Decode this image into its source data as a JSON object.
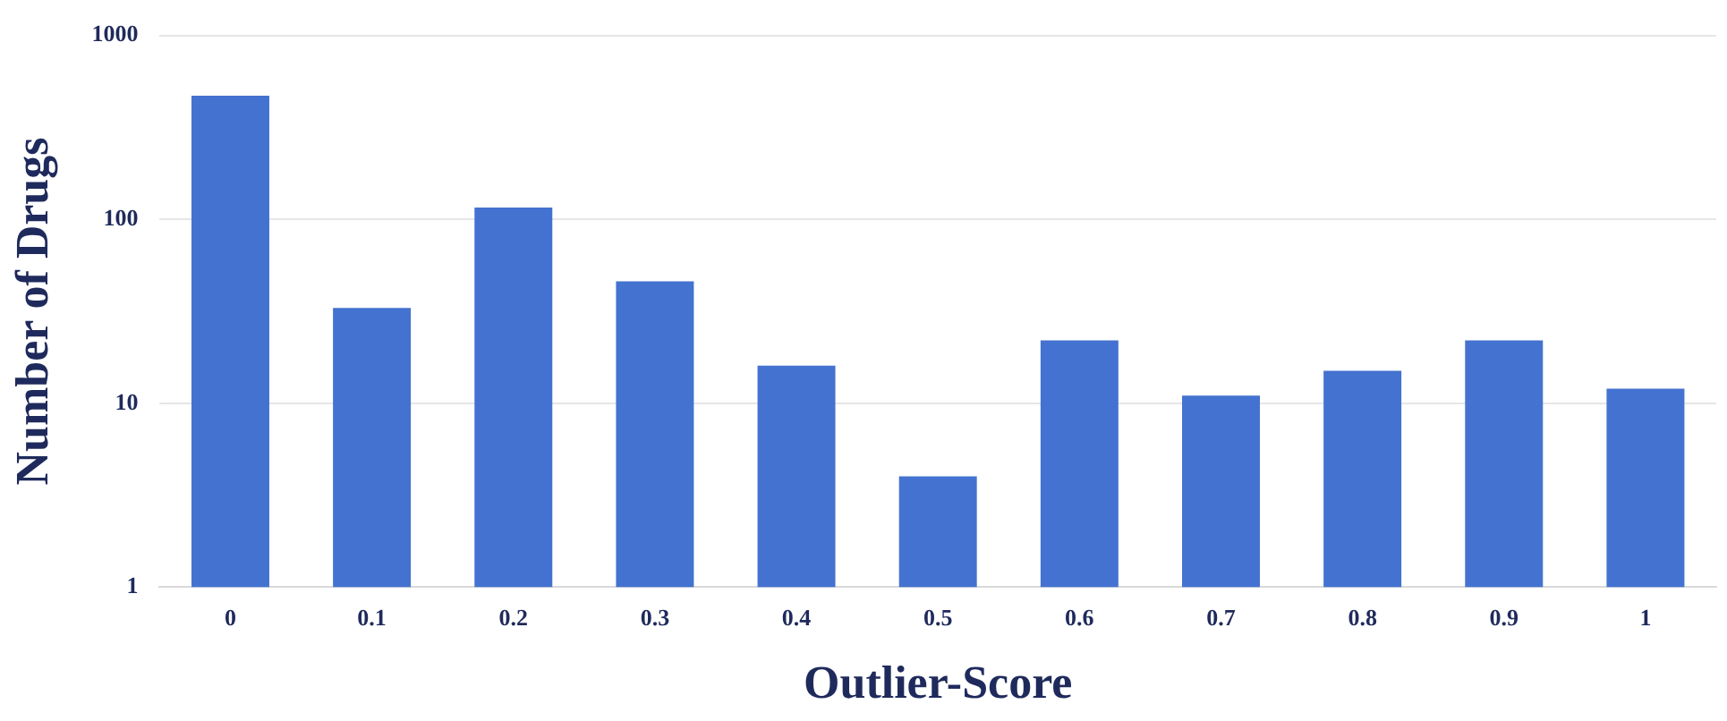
{
  "chart_data": {
    "type": "bar",
    "xlabel": "Outlier-Score",
    "ylabel": "Number of Drugs",
    "categories": [
      "0",
      "0.1",
      "0.2",
      "0.3",
      "0.4",
      "0.5",
      "0.6",
      "0.7",
      "0.8",
      "0.9",
      "1"
    ],
    "values": [
      470,
      33,
      116,
      46,
      16,
      4,
      22,
      11,
      15,
      22,
      12
    ],
    "color": "#4472d0",
    "log": "y",
    "ylim": [
      1,
      1000
    ],
    "yticks": [
      1,
      10,
      100,
      1000
    ],
    "grid": "y",
    "legend": false
  }
}
